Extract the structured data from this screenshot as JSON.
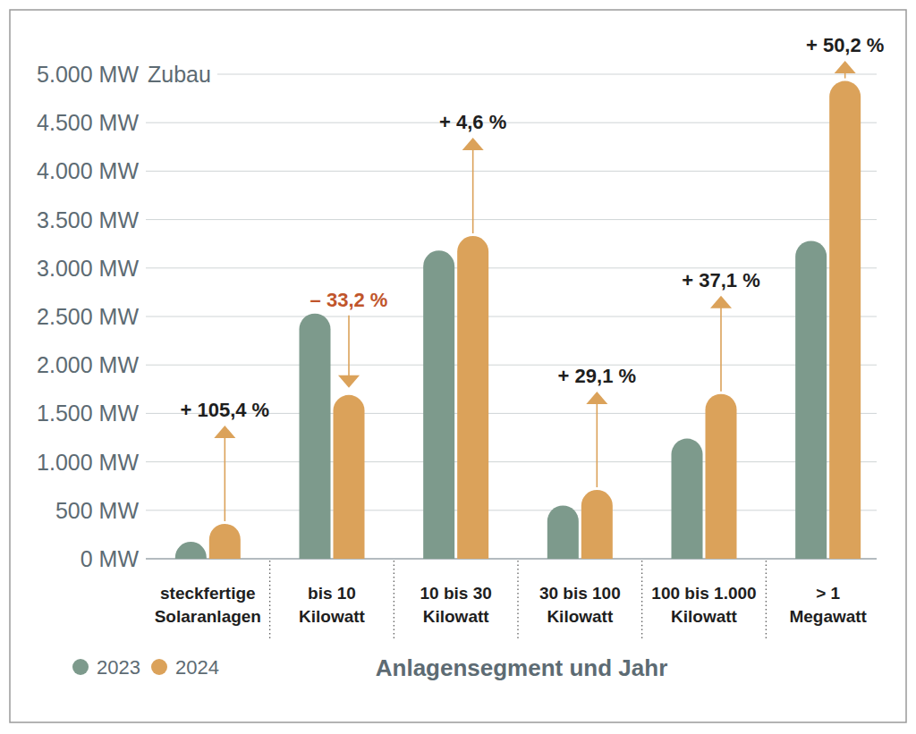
{
  "chart_data": {
    "type": "bar",
    "ylabel": "Zubau",
    "xlabel": "Anlagensegment und Jahr",
    "categories": [
      "steckfertige\nSolaranlagen",
      "bis 10\nKilowatt",
      "10 bis 30\nKilowatt",
      "30 bis 100\nKilowatt",
      "100 bis 1.000\nKilowatt",
      "> 1\nMegawatt"
    ],
    "series": [
      {
        "name": "2023",
        "color": "#7d9a8c",
        "values": [
          175,
          2530,
          3180,
          550,
          1240,
          3280
        ]
      },
      {
        "name": "2024",
        "color": "#dba25a",
        "values": [
          360,
          1690,
          3330,
          710,
          1700,
          4930
        ]
      }
    ],
    "annotations": [
      "+ 105,4 %",
      "– 33,2 %",
      "+ 4,6 %",
      "+ 29,1 %",
      "+ 37,1 %",
      "+ 50,2 %"
    ],
    "ylim": [
      0,
      5000
    ],
    "yticks": [
      {
        "value": 0,
        "label": "0 MW"
      },
      {
        "value": 500,
        "label": "500 MW"
      },
      {
        "value": 1000,
        "label": "1.000 MW"
      },
      {
        "value": 1500,
        "label": "1.500 MW"
      },
      {
        "value": 2000,
        "label": "2.000 MW"
      },
      {
        "value": 2500,
        "label": "2.500 MW"
      },
      {
        "value": 3000,
        "label": "3.000 MW"
      },
      {
        "value": 3500,
        "label": "3.500 MW"
      },
      {
        "value": 4000,
        "label": "4.000 MW"
      },
      {
        "value": 4500,
        "label": "4.500 MW"
      },
      {
        "value": 5000,
        "label": "5.000 MW"
      }
    ],
    "grid": true,
    "legend": "lower left"
  }
}
